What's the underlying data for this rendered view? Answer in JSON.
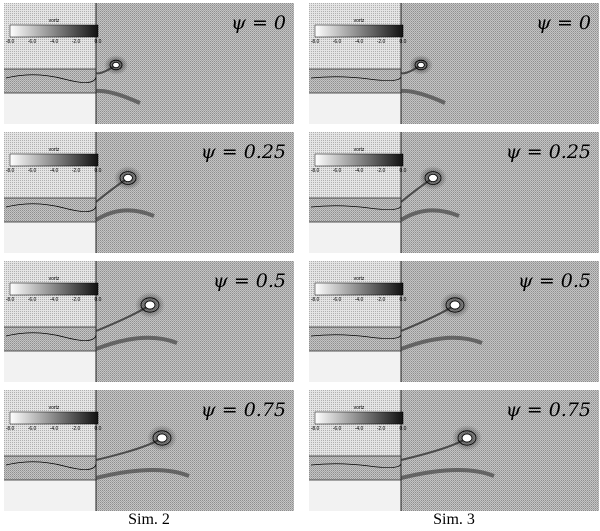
{
  "columns": [
    {
      "caption": "Sim. 2",
      "panels": [
        {
          "label": "ψ = 0"
        },
        {
          "label": "ψ = 0.25"
        },
        {
          "label": "ψ = 0.5"
        },
        {
          "label": "ψ = 0.75"
        }
      ]
    },
    {
      "caption": "Sim. 3",
      "panels": [
        {
          "label": "ψ = 0"
        },
        {
          "label": "ψ = 0.25"
        },
        {
          "label": "ψ = 0.5"
        },
        {
          "label": "ψ = 0.75"
        }
      ]
    }
  ],
  "colorbar": {
    "title": "vortz",
    "ticks": [
      "-8.0",
      "-6.0",
      "-4.0",
      "-2.0",
      "0.0"
    ]
  }
}
